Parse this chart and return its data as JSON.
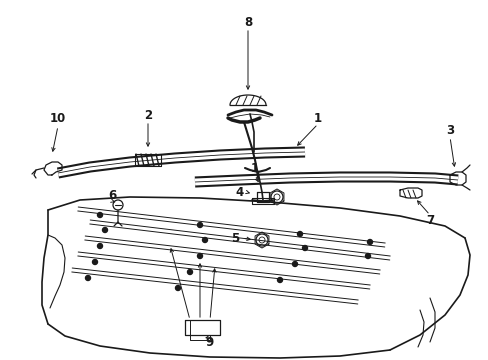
{
  "bg_color": "#ffffff",
  "line_color": "#1a1a1a",
  "fig_width": 4.89,
  "fig_height": 3.6,
  "dpi": 100,
  "label_fontsize": 8.5,
  "label_fontweight": "bold"
}
